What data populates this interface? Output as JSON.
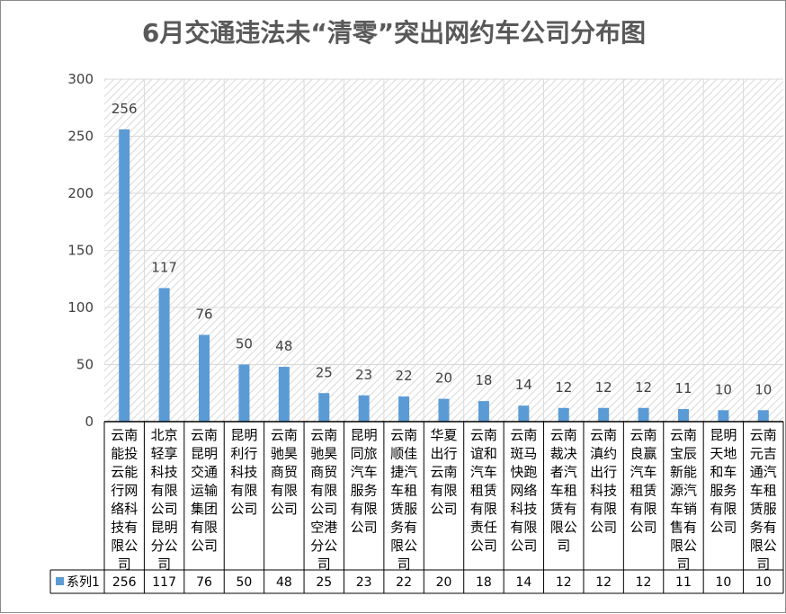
{
  "chart_data": {
    "type": "bar",
    "title": "6月交通违法未“清零”突出网约车公司分布图",
    "categories": [
      "云南能投云能行网络科技有限公司",
      "北京轻享科技有限公司昆明分公司",
      "云南昆明交通运输集团有限公司",
      "昆明利行科技有限公司",
      "云南驰昊商贸有限公司",
      "云南驰昊商贸有限公司空港分公司",
      "昆明同旅汽车服务有限公司",
      "云南顺佳捷汽车租赁服务有限公司",
      "华夏出行云南有限公司",
      "云南谊和汽车租赁有限责任公司",
      "云南斑马快跑网络科技有限公司",
      "云南裁决者汽车租赁有限公司",
      "云南滇约出行科技有限公司",
      "云南良赢汽车租赁有限公司",
      "云南宝辰新能源汽车销售有限公司",
      "昆明天地和车服务有限公司",
      "云南元吉通汽车租赁服务有限公司"
    ],
    "series": [
      {
        "name": "系列1",
        "values": [
          256,
          117,
          76,
          50,
          48,
          25,
          23,
          22,
          20,
          18,
          14,
          12,
          12,
          12,
          11,
          10,
          10
        ]
      }
    ],
    "ylim": [
      0,
      300
    ],
    "yticks": [
      "0",
      "50",
      "100",
      "150",
      "200",
      "250",
      "300"
    ],
    "grid": true,
    "legend": "data-table-left",
    "colors": {
      "bar": "#5b9bd5",
      "text": "#404040",
      "title": "#595959",
      "border": "#000000"
    }
  }
}
